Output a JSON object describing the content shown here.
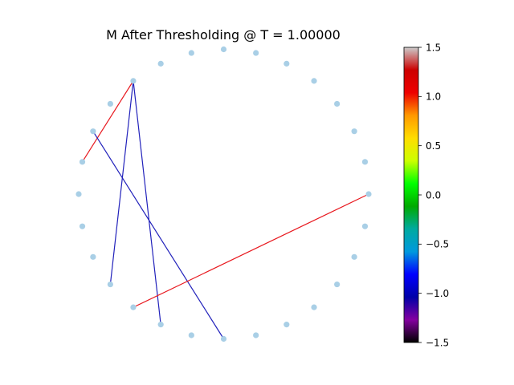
{
  "title": "M After Thresholding @ T = 1.00000",
  "node_color": "#a9cfe6",
  "graph": {
    "node_count": 28,
    "nodes": [
      {
        "id": 0
      },
      {
        "id": 1
      },
      {
        "id": 2
      },
      {
        "id": 3
      },
      {
        "id": 4
      },
      {
        "id": 5
      },
      {
        "id": 6
      },
      {
        "id": 7
      },
      {
        "id": 8
      },
      {
        "id": 9
      },
      {
        "id": 10
      },
      {
        "id": 11
      },
      {
        "id": 12
      },
      {
        "id": 13
      },
      {
        "id": 14
      },
      {
        "id": 15
      },
      {
        "id": 16
      },
      {
        "id": 17
      },
      {
        "id": 18
      },
      {
        "id": 19
      },
      {
        "id": 20
      },
      {
        "id": 21
      },
      {
        "id": 22
      },
      {
        "id": 23
      },
      {
        "id": 24
      },
      {
        "id": 25
      },
      {
        "id": 26
      },
      {
        "id": 27
      }
    ],
    "edges": [
      {
        "source": 10,
        "target": 13,
        "weight": 1.2,
        "color": "#e8191f"
      },
      {
        "source": 10,
        "target": 17,
        "weight": -1.1,
        "color": "#2222bb"
      },
      {
        "source": 10,
        "target": 19,
        "weight": -1.1,
        "color": "#2222bb"
      },
      {
        "source": 12,
        "target": 21,
        "weight": -1.1,
        "color": "#2222bb"
      },
      {
        "source": 0,
        "target": 18,
        "weight": 1.2,
        "color": "#e8191f"
      }
    ]
  },
  "colorbar": {
    "colormap": "nipy_spectral",
    "min": -1.5,
    "max": 1.5,
    "ticks": [
      {
        "value": 1.5,
        "label": "1.5"
      },
      {
        "value": 1.0,
        "label": "1.0"
      },
      {
        "value": 0.5,
        "label": "0.5"
      },
      {
        "value": 0.0,
        "label": "0.0"
      },
      {
        "value": -0.5,
        "label": "−0.5"
      },
      {
        "value": -1.0,
        "label": "−1.0"
      },
      {
        "value": -1.5,
        "label": "−1.5"
      }
    ],
    "gradient_colors": [
      "#000000",
      "#8400a0",
      "#0000a8",
      "#0000ff",
      "#0099dd",
      "#00aaa0",
      "#00aa00",
      "#00ff00",
      "#ccff00",
      "#ffdd00",
      "#ff9900",
      "#ee0000",
      "#cc0000",
      "#cccccc"
    ]
  }
}
